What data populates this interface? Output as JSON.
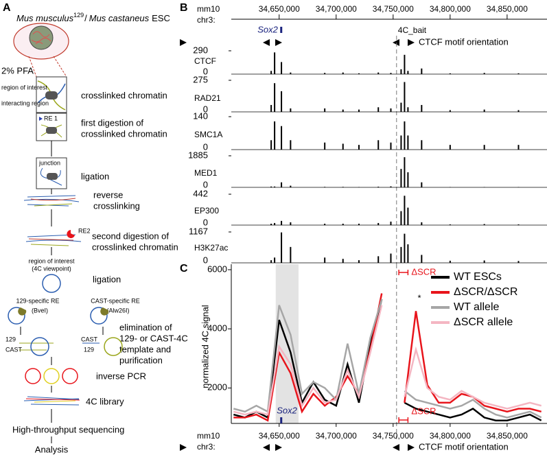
{
  "panel_a": {
    "label": "A",
    "title": {
      "species_1": "Mus musculus",
      "strain_1": "129",
      "separator": "/",
      "species_2": "Mus castaneus",
      "suffix": "ESC"
    },
    "fixation": "2% PFA",
    "region_of_interest": "region of interest",
    "interacting_region": "interacting region",
    "crosslink": [
      "crosslinked chromatin"
    ],
    "re1": "RE 1",
    "digest1": [
      "first digestion of",
      "crosslinked chromatin"
    ],
    "junction": "junction",
    "ligation1": [
      "ligation"
    ],
    "reverse": [
      "reverse",
      "crosslinking"
    ],
    "re2": "RE2",
    "digest2": [
      "second digestion of",
      "crosslinked chromatin"
    ],
    "viewpoint": [
      "region of interest",
      "(4C viewpoint)"
    ],
    "ligation2": [
      "ligation"
    ],
    "re129": [
      "129-specific RE",
      "(BveI)"
    ],
    "recast": [
      "CAST-specific RE",
      "(Alw26I)"
    ],
    "elimination": [
      "elimination of",
      "129- or CAST-4C",
      "template and",
      "purification"
    ],
    "strains_left": [
      "129",
      "CAST"
    ],
    "strains_right": [
      "CAST",
      "129"
    ],
    "inverse": [
      "inverse PCR"
    ],
    "library": [
      "4C library"
    ],
    "sequencing": [
      "High-throughput sequencing"
    ],
    "analysis": [
      "Analysis"
    ]
  },
  "chart_data": [
    {
      "panel": "B",
      "type": "tracks",
      "genome": "mm10",
      "chrom": "chr3:",
      "xlim": [
        34608000,
        34885000
      ],
      "xticks": [
        {
          "value": 34650000,
          "label": "34,650,000"
        },
        {
          "value": 34700000,
          "label": "34,700,000"
        },
        {
          "value": 34750000,
          "label": "34,750,000"
        },
        {
          "value": 34800000,
          "label": "34,800,000"
        },
        {
          "value": 34850000,
          "label": "34,850,000"
        }
      ],
      "gene_label": "Sox2",
      "gene_position": 34651500,
      "bait_label": "4C_bait",
      "bait_position": 34753000,
      "motif_label": "CTCF motif orientation",
      "color": "#000000",
      "x": [
        34643000,
        34646000,
        34652000,
        34660000,
        34690000,
        34706000,
        34720000,
        34737000,
        34748000,
        34757000,
        34760000,
        34763000,
        34775000,
        34800000,
        34830000,
        34860000
      ],
      "tracks": [
        {
          "name": "CTCF",
          "ylim": [
            0,
            290
          ],
          "yticks": [
            0,
            290
          ],
          "values": [
            40,
            270,
            150,
            20,
            15,
            20,
            10,
            20,
            15,
            60,
            240,
            40,
            70,
            10,
            15,
            10
          ]
        },
        {
          "name": "RAD21",
          "ylim": [
            0,
            275
          ],
          "yticks": [
            0,
            275
          ],
          "values": [
            60,
            250,
            180,
            30,
            30,
            20,
            20,
            40,
            30,
            80,
            260,
            40,
            60,
            15,
            20,
            15
          ]
        },
        {
          "name": "SMC1A",
          "ylim": [
            0,
            140
          ],
          "yticks": [
            0,
            140
          ],
          "values": [
            40,
            120,
            100,
            40,
            30,
            25,
            20,
            40,
            30,
            60,
            120,
            60,
            40,
            20,
            20,
            20
          ]
        },
        {
          "name": "MED1",
          "ylim": [
            0,
            1885
          ],
          "yticks": [
            0,
            1885
          ],
          "values": [
            50,
            50,
            300,
            100,
            30,
            30,
            20,
            40,
            60,
            1100,
            1800,
            900,
            300,
            20,
            20,
            20
          ]
        },
        {
          "name": "EP300",
          "ylim": [
            0,
            442
          ],
          "yticks": [
            0,
            442
          ],
          "values": [
            20,
            30,
            60,
            40,
            20,
            20,
            20,
            30,
            50,
            200,
            420,
            250,
            40,
            10,
            15,
            10
          ]
        },
        {
          "name": "H3K27ac",
          "ylim": [
            0,
            1167
          ],
          "yticks": [
            0,
            1167
          ],
          "values": [
            100,
            200,
            1150,
            600,
            200,
            150,
            100,
            250,
            350,
            600,
            1100,
            700,
            300,
            80,
            90,
            70
          ]
        }
      ]
    },
    {
      "panel": "C",
      "type": "line",
      "ylabel": "normalized 4C signal",
      "genome": "mm10",
      "chrom": "chr3:",
      "motif_label": "CTCF motif orientation",
      "xlim": [
        34608000,
        34885000
      ],
      "xticks": [
        {
          "value": 34650000,
          "label": "34,650,000"
        },
        {
          "value": 34700000,
          "label": "34,700,000"
        },
        {
          "value": 34750000,
          "label": "34,750,000"
        },
        {
          "value": 34800000,
          "label": "34,800,000"
        },
        {
          "value": 34850000,
          "label": "34,850,000"
        }
      ],
      "ylim": [
        800,
        6000
      ],
      "yticks": [
        2000,
        4000,
        6000
      ],
      "legend": "upper right",
      "highlight": [
        34647000,
        34667000
      ],
      "bait_position": 34753000,
      "x": [
        34610000,
        34620000,
        34630000,
        34640000,
        34650000,
        34660000,
        34670000,
        34680000,
        34690000,
        34700000,
        34710000,
        34720000,
        34730000,
        34740000,
        34750000,
        34760000,
        34770000,
        34780000,
        34790000,
        34800000,
        34810000,
        34820000,
        34830000,
        34840000,
        34850000,
        34860000,
        34870000,
        34880000
      ],
      "series": [
        {
          "name": "WT ESCs",
          "color": "#000000",
          "values": [
            1100,
            1000,
            1200,
            1000,
            4300,
            3200,
            1500,
            2200,
            1600,
            1400,
            2800,
            1500,
            3500,
            5000,
            null,
            1500,
            1300,
            1200,
            1100,
            1000,
            1100,
            1300,
            1000,
            900,
            900,
            1000,
            1100,
            900
          ]
        },
        {
          "name": "ΔSCR/ΔSCR",
          "color": "#e8141b",
          "values": [
            1000,
            1000,
            1100,
            900,
            3200,
            2500,
            1200,
            1800,
            1400,
            1700,
            2400,
            1800,
            3300,
            5200,
            null,
            1500,
            4600,
            2100,
            1500,
            1500,
            1800,
            1700,
            1400,
            1300,
            1200,
            1300,
            1300,
            1200
          ]
        },
        {
          "name": "WT allele",
          "color": "#a6a6a6",
          "values": [
            1300,
            1200,
            1400,
            1200,
            4800,
            3800,
            1800,
            2200,
            2000,
            1600,
            3500,
            1800,
            3700,
            5000,
            null,
            1900,
            1600,
            1500,
            1400,
            1300,
            1400,
            1600,
            1300,
            1100,
            1000,
            1100,
            1200,
            1000
          ]
        },
        {
          "name": "ΔSCR allele",
          "color": "#f4b6c2",
          "values": [
            1200,
            1100,
            1200,
            1100,
            3400,
            2800,
            1400,
            2000,
            1500,
            1600,
            2600,
            1700,
            3200,
            4800,
            null,
            1700,
            3300,
            2000,
            1700,
            1600,
            1900,
            1700,
            1500,
            1400,
            1300,
            1400,
            1500,
            1400
          ]
        }
      ],
      "annotations": [
        {
          "text": "ΔSCR",
          "x": [
            34755000,
            34763000
          ]
        },
        {
          "text": "Sox2",
          "x": 34651500
        },
        {
          "text": "ΔSCR",
          "x": [
            34755000,
            34763000
          ]
        },
        {
          "text": "*",
          "x": 34773000,
          "y": 4700
        }
      ]
    }
  ]
}
